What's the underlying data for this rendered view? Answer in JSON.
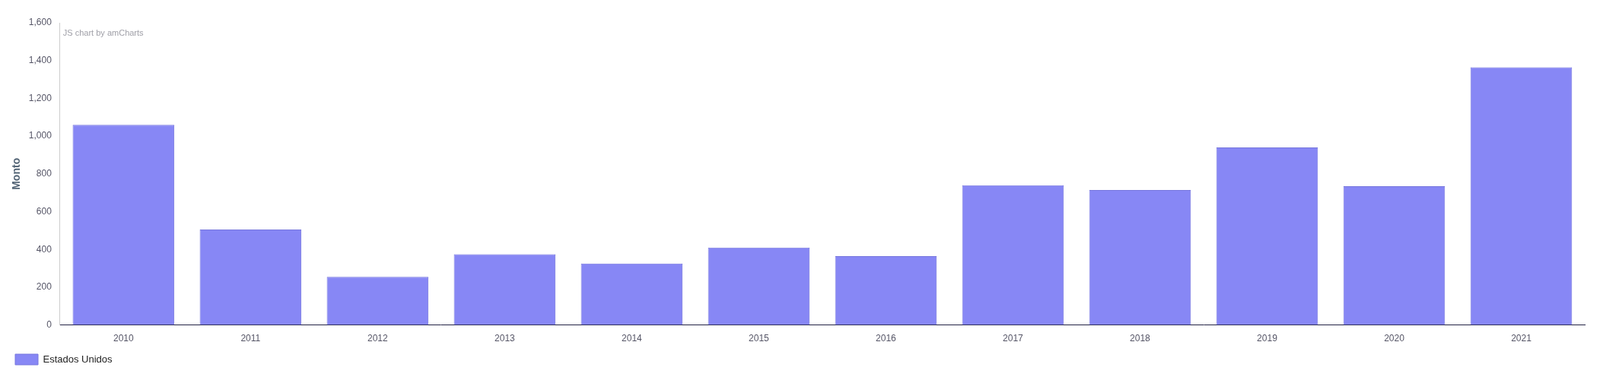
{
  "chart_data": {
    "type": "bar",
    "annotation": "JS chart by amCharts",
    "y_label": "Monto",
    "categories": [
      "2010",
      "2011",
      "2012",
      "2013",
      "2014",
      "2015",
      "2016",
      "2017",
      "2018",
      "2019",
      "2020",
      "2021"
    ],
    "series": [
      {
        "name": "Estados Unidos",
        "color": "#8787f5",
        "values": [
          1060,
          505,
          255,
          375,
          325,
          410,
          365,
          740,
          715,
          940,
          735,
          1365
        ]
      }
    ],
    "ylim": [
      0,
      1600
    ],
    "yticks": [
      0,
      200,
      400,
      600,
      800,
      {
        "value": 1000,
        "label": "1,000"
      },
      {
        "value": 1200,
        "label": "1,200"
      },
      {
        "value": 1400,
        "label": "1,400"
      },
      {
        "value": 1600,
        "label": "1,600"
      }
    ],
    "grid": false,
    "legend": "bottom-left"
  }
}
